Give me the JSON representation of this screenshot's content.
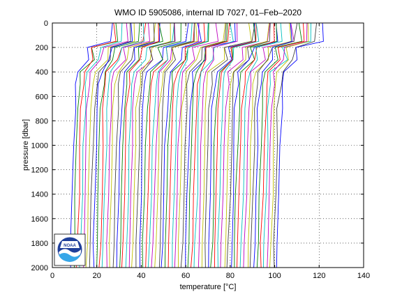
{
  "chart_data": {
    "type": "line",
    "title": "WMO ID 5905086, internal ID 7027, 01–Feb–2020",
    "xlabel": "temperature [°C]",
    "ylabel": "pressure [dbar]",
    "xlim": [
      0,
      140
    ],
    "ylim": [
      2000,
      0
    ],
    "y_reversed": true,
    "grid": true,
    "grid_style": "dotted",
    "x_ticks": [
      "0",
      "20",
      "40",
      "60",
      "80",
      "100",
      "120",
      "140"
    ],
    "y_ticks": [
      "0",
      "200",
      "400",
      "600",
      "800",
      "1000",
      "1200",
      "1400",
      "1600",
      "1800",
      "2000"
    ],
    "series_note": "waterfall of profiles, each offset in temperature",
    "profiles": {
      "count": 64,
      "first_bottom_x": 8,
      "last_bottom_x": 101,
      "pressure_levels": [
        0,
        150,
        200,
        300,
        400,
        500,
        700,
        1000,
        1400,
        1800,
        2000
      ]
    },
    "colors": [
      "#0000ff",
      "#008000",
      "#ff0000",
      "#00bfbf",
      "#bf00bf",
      "#bfbf00",
      "#404040"
    ],
    "logo": {
      "text": "NOAA",
      "icon": "noaa-logo-icon"
    }
  }
}
